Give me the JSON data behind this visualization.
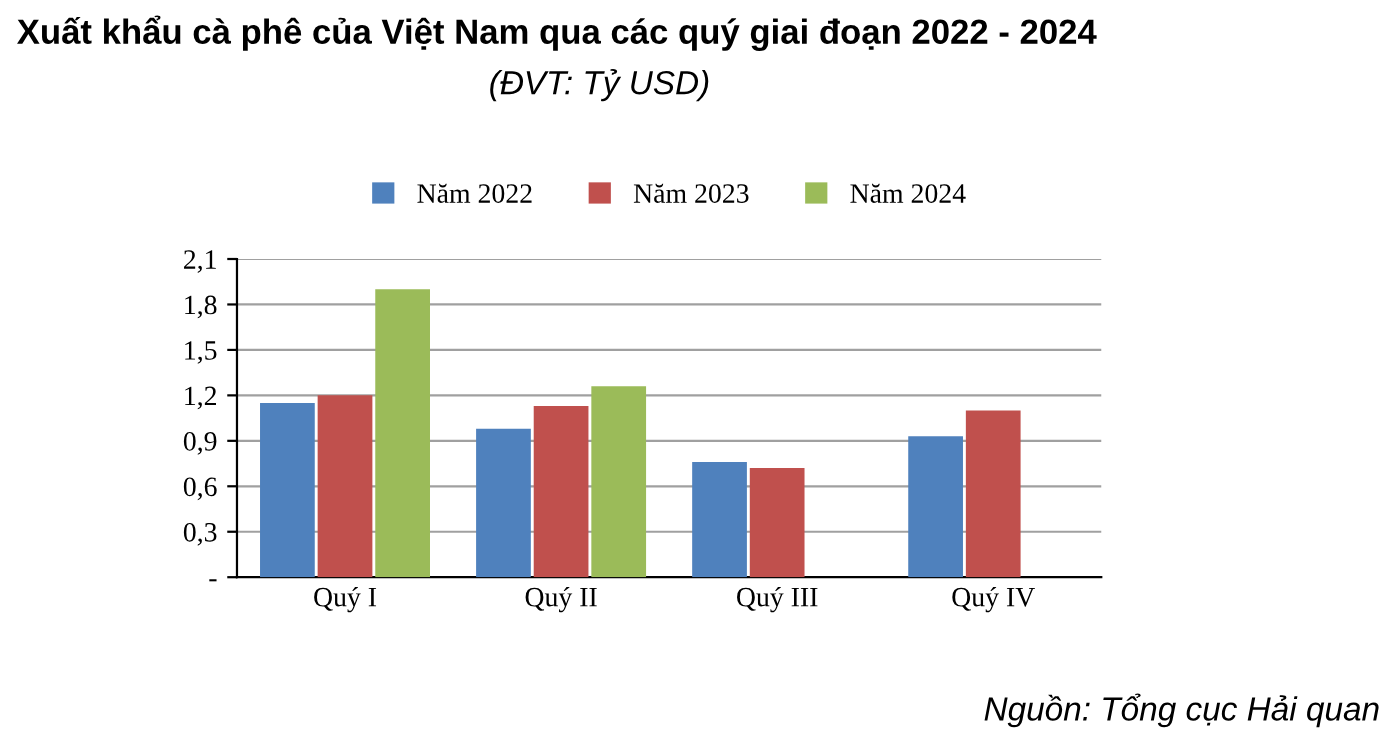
{
  "chart_data": {
    "type": "bar",
    "title": "Xuất khẩu cà phê của Việt Nam qua các quý giai đoạn 2022 - 2024",
    "subtitle": "(ĐVT: Tỷ USD)",
    "categories": [
      "Quý I",
      "Quý II",
      "Quý III",
      "Quý IV"
    ],
    "series": [
      {
        "name": "Năm 2022",
        "color": "#4f81bd",
        "values": [
          1.15,
          0.98,
          0.76,
          0.93
        ]
      },
      {
        "name": "Năm 2023",
        "color": "#c0504d",
        "values": [
          1.2,
          1.13,
          0.72,
          1.1
        ]
      },
      {
        "name": "Năm 2024",
        "color": "#9bbb59",
        "values": [
          1.9,
          1.26,
          null,
          null
        ]
      }
    ],
    "ylim": [
      0,
      2.1
    ],
    "yticks": [
      {
        "value": 0,
        "label": "-"
      },
      {
        "value": 0.3,
        "label": "0,3"
      },
      {
        "value": 0.6,
        "label": "0,6"
      },
      {
        "value": 0.9,
        "label": "0,9"
      },
      {
        "value": 1.2,
        "label": "1,2"
      },
      {
        "value": 1.5,
        "label": "1,5"
      },
      {
        "value": 1.8,
        "label": "1,8"
      },
      {
        "value": 2.1,
        "label": "2,1"
      }
    ],
    "grid": "y",
    "legend": "top",
    "annotations": [
      "Nguồn: Tổng cục Hải quan"
    ]
  }
}
